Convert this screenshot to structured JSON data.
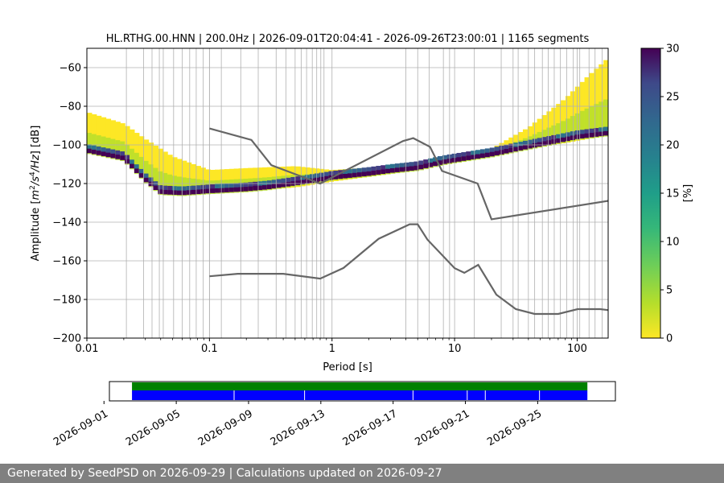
{
  "chart_data": {
    "type": "heatmap",
    "title": "HL.RTHG.00.HNN | 200.0Hz | 2026-09-01T20:04:41 - 2026-09-26T23:00:01 | 1165 segments",
    "xlabel": "Period [s]",
    "ylabel": "Amplitude [m²/s⁴/Hz] [dB]",
    "x_scale": "log",
    "xlim": [
      0.01,
      179
    ],
    "ylim": [
      -200,
      -50
    ],
    "x_tick_labels": [
      "0.01",
      "0.1",
      "1",
      "10",
      "100"
    ],
    "y_tick_labels": [
      "−60",
      "−80",
      "−100",
      "−120",
      "−140",
      "−160",
      "−180",
      "−200"
    ],
    "grid": true,
    "colorbar": {
      "label": "[%]",
      "range": [
        0,
        30
      ],
      "tick_labels": [
        "0",
        "5",
        "10",
        "15",
        "20",
        "25",
        "30"
      ],
      "colormap": "viridis_r"
    },
    "mode_line": {
      "period": [
        0.01,
        0.02,
        0.03,
        0.04,
        0.06,
        0.1,
        0.2,
        0.3,
        0.5,
        0.8,
        1,
        2,
        3,
        5,
        8,
        10,
        20,
        40,
        70,
        100,
        179
      ],
      "db": [
        -102,
        -106,
        -117,
        -123.5,
        -124,
        -123,
        -122,
        -121,
        -119,
        -117,
        -116,
        -114,
        -112.5,
        -111,
        -108,
        -107,
        -104,
        -100,
        -97,
        -95,
        -93
      ]
    },
    "upper_spread": {
      "period": [
        0.01,
        0.02,
        0.03,
        0.05,
        0.1,
        0.2,
        0.5,
        1,
        3,
        10,
        20,
        40,
        80,
        120,
        179
      ],
      "db": [
        -83,
        -89,
        -97,
        -106,
        -113,
        -112,
        -111,
        -113,
        -111,
        -106,
        -102,
        -91,
        -76,
        -65,
        -55
      ]
    },
    "lower_spread": {
      "period": [
        0.01,
        0.02,
        0.03,
        0.05,
        0.1,
        0.2,
        0.5,
        1,
        3,
        10,
        20,
        40,
        80,
        120,
        179
      ],
      "db": [
        -103,
        -108,
        -119,
        -126,
        -125,
        -124,
        -122,
        -119,
        -115,
        -109,
        -104,
        -102,
        -99,
        -97,
        -95
      ]
    },
    "nhnm": {
      "period": [
        0.1,
        0.22,
        0.32,
        0.8,
        3.8,
        4.6,
        6.3,
        7.9,
        15.4,
        20,
        354.8
      ],
      "db": [
        -91.5,
        -97.4,
        -110.5,
        -120,
        -98,
        -96.5,
        -101,
        -113.5,
        -120,
        -138.5,
        -126
      ]
    },
    "nlnm": {
      "period": [
        0.1,
        0.17,
        0.4,
        0.8,
        1.24,
        2.4,
        4.3,
        5,
        6,
        10,
        12,
        15.6,
        21.9,
        31.6,
        45,
        70,
        101,
        154,
        179
      ],
      "db": [
        -168,
        -166.7,
        -166.7,
        -169.2,
        -163.7,
        -148.6,
        -141.1,
        -141.1,
        -149,
        -163.8,
        -166.2,
        -162.1,
        -177.5,
        -185,
        -187.5,
        -187.5,
        -185,
        -185,
        -185.5
      ]
    },
    "vertical_lines_period": [
      0.021,
      0.029,
      0.034,
      0.039,
      0.042,
      0.051,
      0.06,
      0.069,
      0.078,
      0.089,
      0.1,
      0.125,
      0.18,
      0.25,
      0.35,
      0.42,
      0.5,
      0.56,
      0.62,
      0.69,
      0.75,
      0.81,
      0.86,
      4,
      5,
      6.2,
      8.1,
      9.1,
      14.5,
      24,
      30,
      33,
      40,
      45,
      52,
      58,
      65,
      73,
      82,
      93,
      105,
      125,
      140,
      160
    ]
  },
  "timeline": {
    "date_labels": [
      "2026-09-01",
      "2026-09-05",
      "2026-09-09",
      "2026-09-13",
      "2026-09-17",
      "2026-09-21",
      "2026-09-25"
    ],
    "start_day": 0.3,
    "end_day": 28.3,
    "data_span_days": [
      1.55,
      26.75
    ],
    "gaps_days": [
      7.2,
      11.1,
      17.1,
      20.1,
      21.1,
      24.1
    ],
    "colors": {
      "top": "#008000",
      "bottom": "#0000ff"
    }
  },
  "footer": {
    "text": "Generated by SeedPSD on 2026-09-29 | Calculations updated on 2026-09-27"
  }
}
